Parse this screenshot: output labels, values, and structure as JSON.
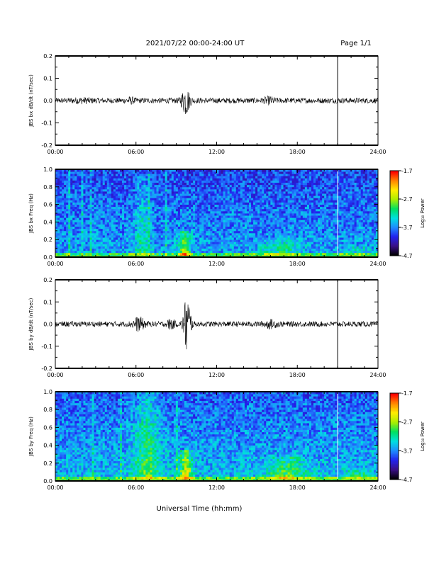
{
  "header": {
    "title": "2021/07/22  00:00-24:00 UT",
    "page": "Page 1/1"
  },
  "x_axis": {
    "label": "Universal Time (hh:mm)",
    "ticks": [
      "00:00",
      "06:00",
      "12:00",
      "18:00",
      "24:00"
    ]
  },
  "colorbar": {
    "label": "Log₁₀ Power",
    "ticks": [
      "-1.7",
      "-2.7",
      "-3.7",
      "-4.7"
    ],
    "colors": [
      "#000000",
      "#3a0f86",
      "#2222ee",
      "#1e8cff",
      "#00e0e0",
      "#00e060",
      "#aaee00",
      "#ffee00",
      "#ff8800",
      "#ff0000"
    ]
  },
  "chart_data": [
    {
      "type": "line",
      "ylabel": "JBS bx dB/dt (nT/sec)",
      "ylim": [
        -0.2,
        0.2
      ],
      "xlim_hours": [
        0,
        24
      ],
      "yticks": [
        "-0.2",
        "-0.1",
        "0.0",
        "0.1",
        "0.2"
      ],
      "marker_hour": 21.0,
      "series": [
        {
          "baseline_amplitude": 0.012,
          "bursts": [
            {
              "center_hour": 9.7,
              "width_hours": 0.6,
              "amplitude": 0.06
            },
            {
              "center_hour": 5.6,
              "width_hours": 0.6,
              "amplitude": 0.008
            },
            {
              "center_hour": 15.9,
              "width_hours": 0.8,
              "amplitude": 0.01
            },
            {
              "center_hour": 2.0,
              "width_hours": 1.5,
              "amplitude": 0.005
            }
          ]
        }
      ]
    },
    {
      "type": "heatmap",
      "ylabel": "JBS bx Freq (Hz)",
      "ylim": [
        0.0,
        1.0
      ],
      "xlim_hours": [
        0,
        24
      ],
      "yticks": [
        "0.0",
        "0.2",
        "0.4",
        "0.6",
        "0.8",
        "1.0"
      ],
      "zlim": [
        -4.7,
        -1.7
      ],
      "marker_hour": 21.0,
      "base_level": 0.25,
      "features": [
        {
          "center_hour": 6.5,
          "width_hours": 1.2,
          "max_freq": 0.95,
          "level": 0.15
        },
        {
          "center_hour": 9.6,
          "width_hours": 0.9,
          "max_freq": 0.3,
          "level": 0.35
        },
        {
          "center_hour": 16.8,
          "width_hours": 3.0,
          "max_freq": 0.22,
          "level": 0.18
        },
        {
          "center_hour": 22.5,
          "width_hours": 2.0,
          "max_freq": 0.12,
          "level": 0.12
        }
      ]
    },
    {
      "type": "line",
      "ylabel": "JBS by dB/dt (nT/sec)",
      "ylim": [
        -0.2,
        0.2
      ],
      "xlim_hours": [
        0,
        24
      ],
      "yticks": [
        "-0.2",
        "-0.1",
        "0.0",
        "0.1",
        "0.2"
      ],
      "marker_hour": 21.0,
      "series": [
        {
          "baseline_amplitude": 0.012,
          "bursts": [
            {
              "center_hour": 9.8,
              "width_hours": 0.5,
              "amplitude": 0.14
            },
            {
              "center_hour": 6.2,
              "width_hours": 0.9,
              "amplitude": 0.025
            },
            {
              "center_hour": 8.6,
              "width_hours": 0.5,
              "amplitude": 0.02
            },
            {
              "center_hour": 16.0,
              "width_hours": 1.0,
              "amplitude": 0.012
            }
          ]
        }
      ]
    },
    {
      "type": "heatmap",
      "ylabel": "JBS by Freq (Hz)",
      "ylim": [
        0.0,
        1.0
      ],
      "xlim_hours": [
        0,
        24
      ],
      "yticks": [
        "0.0",
        "0.2",
        "0.4",
        "0.6",
        "0.8",
        "1.0"
      ],
      "zlim": [
        -4.7,
        -1.7
      ],
      "marker_hour": 21.0,
      "base_level": 0.28,
      "features": [
        {
          "center_hour": 6.8,
          "width_hours": 2.0,
          "max_freq": 1.0,
          "level": 0.22
        },
        {
          "center_hour": 9.7,
          "width_hours": 0.9,
          "max_freq": 0.35,
          "level": 0.4
        },
        {
          "center_hour": 17.2,
          "width_hours": 3.0,
          "max_freq": 0.28,
          "level": 0.22
        },
        {
          "center_hour": 22.5,
          "width_hours": 2.0,
          "max_freq": 0.15,
          "level": 0.15
        }
      ]
    }
  ]
}
